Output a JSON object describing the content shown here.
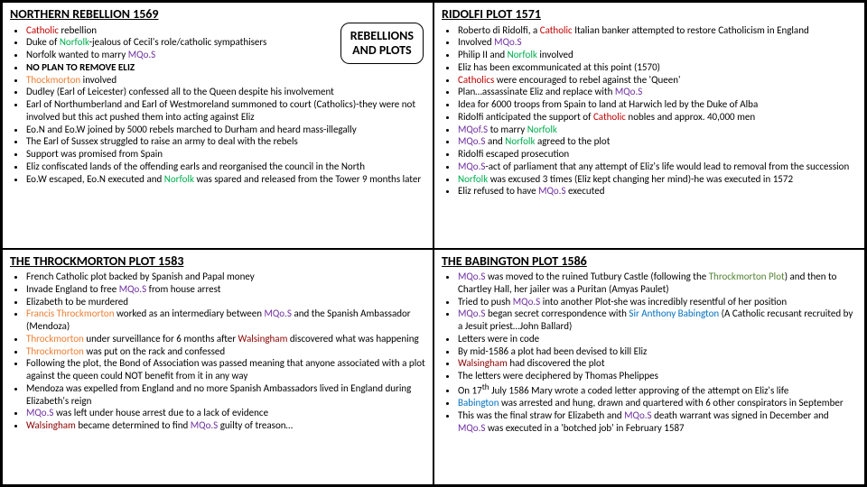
{
  "badge": {
    "line1": "REBELLIONS",
    "line2": "AND PLOTS"
  },
  "colors": {
    "red": "#c00000",
    "green": "#00b050",
    "purple": "#7030a0",
    "orange": "#ed7d31",
    "blue": "#0070c0",
    "dkgreen": "#548235",
    "dkred": "#8b0000"
  },
  "sections": {
    "northern": {
      "title": "NORTHERN REBELLION 1569",
      "items": [
        "<span class='c-red'>Catholic</span> rebellion",
        "Duke of <span class='c-green'>Norfolk</span>-jealous of Cecil's role/catholic sympathisers",
        "Norfolk wanted to marry <span class='c-purple'>MQo.S</span>",
        "<b>NO PLAN TO REMOVE ELIZ</b>",
        "<span class='c-orange'>Thockmorton</span> involved",
        "Dudley (Earl of Leicester) confessed all to the Queen despite his involvement",
        "Earl of Northumberland and Earl of Westmoreland summoned to court (Catholics)-they were not involved but this act pushed them into acting against Eliz",
        "Eo.N and Eo.W joined by 5000 rebels marched to Durham and heard mass-illegally",
        "The Earl of Sussex struggled to raise an army to deal with the rebels",
        "Support was promised from Spain",
        "Eliz confiscated lands of the offending earls and reorganised the council in the North",
        "Eo.W escaped, Eo.N executed and <span class='c-green'>Norfolk</span> was spared and released from the Tower 9 months later"
      ]
    },
    "ridolfi": {
      "title": "RIDOLFI PLOT 1571",
      "items": [
        "Roberto di Ridolfi, a <span class='c-red'>Catholic</span> Italian banker attempted to restore Catholicism in England",
        "Involved <span class='c-purple'>MQo.S</span>",
        "Philip II and <span class='c-green'>Norfolk</span> involved",
        "Eliz has been excommunicated at this point (1570)",
        "<span class='c-red'>Catholics</span> were encouraged to rebel against the 'Queen'",
        "Plan…assassinate Eliz and replace with <span class='c-purple'>MQo.S</span>",
        "Idea for 6000 troops from Spain to land at Harwich led by the Duke of Alba",
        "Ridolfi anticipated the support of <span class='c-red'>Catholic</span> nobles and approx. 40,000 men",
        "<span class='c-purple'>MQof.S</span> to marry <span class='c-green'>Norfolk</span>",
        "<span class='c-purple'>MQo.S</span> and <span class='c-green'>Norfolk</span> agreed to the plot",
        "Ridolfi escaped prosecution",
        "<span class='c-purple'>MQo.S</span>-act of parliament that any attempt of Eliz's life would lead to removal from the succession",
        "<span class='c-green'>Norfolk</span> was excused 3 times (Eliz kept changing her mind)-he was executed in 1572",
        "Eliz refused to have <span class='c-purple'>MQo.S</span> executed"
      ]
    },
    "throckmorton": {
      "title": "THE THROCKMORTON PLOT 1583",
      "items": [
        "French Catholic plot backed by Spanish and Papal money",
        "Invade England to free <span class='c-purple'>MQo.S</span> from house arrest",
        "Elizabeth to be murdered",
        "<span class='c-orange'>Francis Throckmorton</span> worked as an intermediary between <span class='c-purple'>MQo.S</span> and the Spanish Ambassador (Mendoza)",
        "<span class='c-orange'>Throckmorton</span> under surveillance for 6 months after <span class='c-dkred'>Walsingham</span> discovered what was happening",
        "<span class='c-orange'>Throckmorton</span> was put on the rack and confessed",
        "Following the plot, the Bond of Association was passed meaning that anyone associated with a plot against the queen could NOT benefit from it in any way",
        "Mendoza was expelled from England and no more Spanish Ambassadors lived in England during Elizabeth's reign",
        "<span class='c-purple'>MQo.S</span> was left under house arrest due to a lack of evidence",
        "<span class='c-dkred'>Walsingham</span> became determined to find <span class='c-purple'>MQo.S</span> guilty of treason…"
      ]
    },
    "babington": {
      "title": "THE BABINGTON PLOT 1586",
      "items": [
        "<span class='c-purple'>MQo.S</span> was moved to the ruined Tutbury Castle (following the <span class='c-dkgreen'>Throckmorton Plot</span>) and then to Chartley Hall, her jailer was a Puritan (Amyas Paulet)",
        "Tried to push <span class='c-purple'>MQo.S</span> into another Plot-she was incredibly resentful of her position",
        "<span class='c-purple'>MQo.S</span> began secret correspondence with <span class='c-blue'>Sir Anthony Babington</span> (A Catholic recusant recruited by a Jesuit priest…John Ballard)",
        "Letters were in code",
        "By mid-1586 a plot had been devised to kill Eliz",
        "<span class='c-dkred'>Walsingham</span> had discovered the plot",
        "The letters were deciphered by Thomas Phelippes",
        "On 17<sup>th</sup> July 1586 Mary wrote a coded letter approving of the attempt on Eliz's life",
        "<span class='c-blue'>Babington</span> was arrested and hung, drawn and quartered with 6 other conspirators in September",
        "This was the final straw for Elizabeth and <span class='c-purple'>MQo.S</span> death warrant was signed in December and <span class='c-purple'>MQo.S</span> was executed in a 'botched job' in February 1587"
      ]
    }
  }
}
